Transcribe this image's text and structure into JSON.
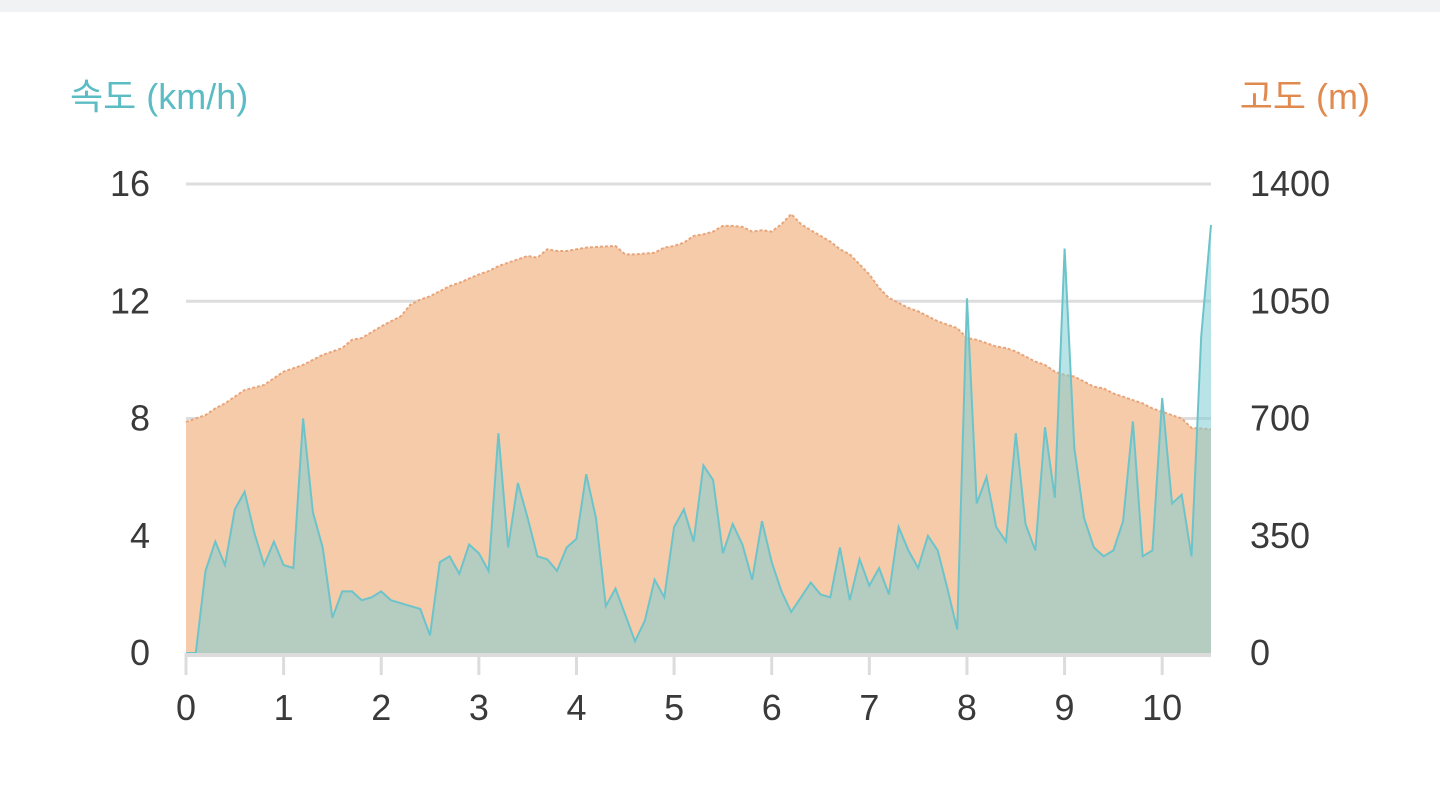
{
  "chart_data": {
    "type": "area",
    "x": {
      "ticks": [
        0,
        1,
        2,
        3,
        4,
        5,
        6,
        7,
        8,
        9,
        10
      ],
      "range": [
        0,
        10.5
      ]
    },
    "y_left": {
      "label": "속도 (km/h)",
      "ticks": [
        0,
        4,
        8,
        12,
        16
      ],
      "range": [
        0,
        16
      ],
      "color": "#5bbcc4"
    },
    "y_right": {
      "label": "고도 (m)",
      "ticks": [
        0,
        350,
        700,
        1050,
        1400
      ],
      "range": [
        0,
        1400
      ],
      "color": "#e08a4f"
    },
    "grid": true,
    "series": [
      {
        "axis": "right",
        "color": "#f5cbaa",
        "line_color": "#e9a57a",
        "points": [
          [
            0,
            690
          ],
          [
            0.2,
            710
          ],
          [
            0.3,
            730
          ],
          [
            0.4,
            745
          ],
          [
            0.5,
            765
          ],
          [
            0.6,
            785
          ],
          [
            0.8,
            800
          ],
          [
            0.9,
            820
          ],
          [
            1.0,
            840
          ],
          [
            1.1,
            850
          ],
          [
            1.2,
            860
          ],
          [
            1.3,
            875
          ],
          [
            1.4,
            890
          ],
          [
            1.5,
            900
          ],
          [
            1.6,
            910
          ],
          [
            1.7,
            935
          ],
          [
            1.8,
            940
          ],
          [
            2.0,
            975
          ],
          [
            2.1,
            990
          ],
          [
            2.2,
            1005
          ],
          [
            2.3,
            1040
          ],
          [
            2.4,
            1055
          ],
          [
            2.5,
            1065
          ],
          [
            2.6,
            1080
          ],
          [
            2.7,
            1095
          ],
          [
            2.8,
            1105
          ],
          [
            3.0,
            1130
          ],
          [
            3.1,
            1140
          ],
          [
            3.2,
            1155
          ],
          [
            3.3,
            1165
          ],
          [
            3.4,
            1175
          ],
          [
            3.5,
            1185
          ],
          [
            3.6,
            1180
          ],
          [
            3.7,
            1205
          ],
          [
            3.8,
            1200
          ],
          [
            3.9,
            1200
          ],
          [
            4.0,
            1205
          ],
          [
            4.1,
            1210
          ],
          [
            4.2,
            1212
          ],
          [
            4.4,
            1215
          ],
          [
            4.5,
            1190
          ],
          [
            4.6,
            1190
          ],
          [
            4.8,
            1195
          ],
          [
            4.9,
            1210
          ],
          [
            5.0,
            1215
          ],
          [
            5.1,
            1225
          ],
          [
            5.2,
            1245
          ],
          [
            5.3,
            1250
          ],
          [
            5.4,
            1258
          ],
          [
            5.5,
            1275
          ],
          [
            5.6,
            1275
          ],
          [
            5.7,
            1272
          ],
          [
            5.8,
            1258
          ],
          [
            5.9,
            1262
          ],
          [
            6.0,
            1258
          ],
          [
            6.1,
            1280
          ],
          [
            6.2,
            1310
          ],
          [
            6.3,
            1280
          ],
          [
            6.4,
            1262
          ],
          [
            6.5,
            1245
          ],
          [
            6.6,
            1228
          ],
          [
            6.7,
            1205
          ],
          [
            6.8,
            1190
          ],
          [
            6.9,
            1160
          ],
          [
            7.0,
            1130
          ],
          [
            7.1,
            1090
          ],
          [
            7.2,
            1060
          ],
          [
            7.3,
            1045
          ],
          [
            7.4,
            1030
          ],
          [
            7.5,
            1020
          ],
          [
            7.6,
            1005
          ],
          [
            7.7,
            990
          ],
          [
            7.8,
            980
          ],
          [
            7.9,
            970
          ],
          [
            8.0,
            940
          ],
          [
            8.1,
            935
          ],
          [
            8.2,
            925
          ],
          [
            8.3,
            915
          ],
          [
            8.4,
            910
          ],
          [
            8.5,
            900
          ],
          [
            8.6,
            885
          ],
          [
            8.7,
            870
          ],
          [
            8.8,
            860
          ],
          [
            8.9,
            840
          ],
          [
            9.0,
            830
          ],
          [
            9.1,
            825
          ],
          [
            9.2,
            810
          ],
          [
            9.3,
            795
          ],
          [
            9.4,
            790
          ],
          [
            9.5,
            775
          ],
          [
            9.6,
            765
          ],
          [
            9.7,
            755
          ],
          [
            9.8,
            745
          ],
          [
            9.9,
            730
          ],
          [
            10.0,
            720
          ],
          [
            10.1,
            710
          ],
          [
            10.2,
            700
          ],
          [
            10.3,
            672
          ],
          [
            10.4,
            670
          ],
          [
            10.5,
            668
          ]
        ]
      },
      {
        "axis": "left",
        "color": "#7fcdd4",
        "line_color": "#6cc4cb",
        "points": [
          [
            0,
            0
          ],
          [
            0.1,
            0
          ],
          [
            0.2,
            2.8
          ],
          [
            0.3,
            3.8
          ],
          [
            0.4,
            3.0
          ],
          [
            0.5,
            4.9
          ],
          [
            0.6,
            5.5
          ],
          [
            0.7,
            4.1
          ],
          [
            0.8,
            3.0
          ],
          [
            0.9,
            3.8
          ],
          [
            1.0,
            3.0
          ],
          [
            1.1,
            2.9
          ],
          [
            1.2,
            8.0
          ],
          [
            1.3,
            4.8
          ],
          [
            1.4,
            3.6
          ],
          [
            1.5,
            1.2
          ],
          [
            1.6,
            2.1
          ],
          [
            1.7,
            2.1
          ],
          [
            1.8,
            1.8
          ],
          [
            1.9,
            1.9
          ],
          [
            2.0,
            2.1
          ],
          [
            2.1,
            1.8
          ],
          [
            2.2,
            1.7
          ],
          [
            2.3,
            1.6
          ],
          [
            2.4,
            1.5
          ],
          [
            2.5,
            0.6
          ],
          [
            2.6,
            3.1
          ],
          [
            2.7,
            3.3
          ],
          [
            2.8,
            2.7
          ],
          [
            2.9,
            3.7
          ],
          [
            3.0,
            3.4
          ],
          [
            3.1,
            2.8
          ],
          [
            3.2,
            7.5
          ],
          [
            3.3,
            3.6
          ],
          [
            3.4,
            5.8
          ],
          [
            3.5,
            4.6
          ],
          [
            3.6,
            3.3
          ],
          [
            3.7,
            3.2
          ],
          [
            3.8,
            2.8
          ],
          [
            3.9,
            3.6
          ],
          [
            4.0,
            3.9
          ],
          [
            4.1,
            6.1
          ],
          [
            4.2,
            4.6
          ],
          [
            4.3,
            1.6
          ],
          [
            4.4,
            2.2
          ],
          [
            4.5,
            1.3
          ],
          [
            4.6,
            0.4
          ],
          [
            4.7,
            1.1
          ],
          [
            4.8,
            2.5
          ],
          [
            4.9,
            1.9
          ],
          [
            5.0,
            4.3
          ],
          [
            5.1,
            4.9
          ],
          [
            5.2,
            3.8
          ],
          [
            5.3,
            6.4
          ],
          [
            5.4,
            5.9
          ],
          [
            5.5,
            3.4
          ],
          [
            5.6,
            4.4
          ],
          [
            5.7,
            3.7
          ],
          [
            5.8,
            2.5
          ],
          [
            5.9,
            4.5
          ],
          [
            6.0,
            3.1
          ],
          [
            6.1,
            2.1
          ],
          [
            6.2,
            1.4
          ],
          [
            6.3,
            1.9
          ],
          [
            6.4,
            2.4
          ],
          [
            6.5,
            2.0
          ],
          [
            6.6,
            1.9
          ],
          [
            6.7,
            3.6
          ],
          [
            6.8,
            1.8
          ],
          [
            6.9,
            3.2
          ],
          [
            7.0,
            2.3
          ],
          [
            7.1,
            2.9
          ],
          [
            7.2,
            2.0
          ],
          [
            7.3,
            4.3
          ],
          [
            7.4,
            3.5
          ],
          [
            7.5,
            2.9
          ],
          [
            7.6,
            4.0
          ],
          [
            7.7,
            3.5
          ],
          [
            7.8,
            2.2
          ],
          [
            7.9,
            0.8
          ],
          [
            8.0,
            12.1
          ],
          [
            8.1,
            5.1
          ],
          [
            8.2,
            6.0
          ],
          [
            8.3,
            4.3
          ],
          [
            8.4,
            3.8
          ],
          [
            8.5,
            7.5
          ],
          [
            8.6,
            4.4
          ],
          [
            8.7,
            3.5
          ],
          [
            8.8,
            7.7
          ],
          [
            8.9,
            5.3
          ],
          [
            9.0,
            13.8
          ],
          [
            9.1,
            7.0
          ],
          [
            9.2,
            4.6
          ],
          [
            9.3,
            3.6
          ],
          [
            9.4,
            3.3
          ],
          [
            9.5,
            3.5
          ],
          [
            9.6,
            4.5
          ],
          [
            9.7,
            7.9
          ],
          [
            9.8,
            3.3
          ],
          [
            9.9,
            3.5
          ],
          [
            10.0,
            8.7
          ],
          [
            10.1,
            5.1
          ],
          [
            10.2,
            5.4
          ],
          [
            10.3,
            3.3
          ],
          [
            10.4,
            10.8
          ],
          [
            10.5,
            14.6
          ]
        ]
      }
    ]
  }
}
